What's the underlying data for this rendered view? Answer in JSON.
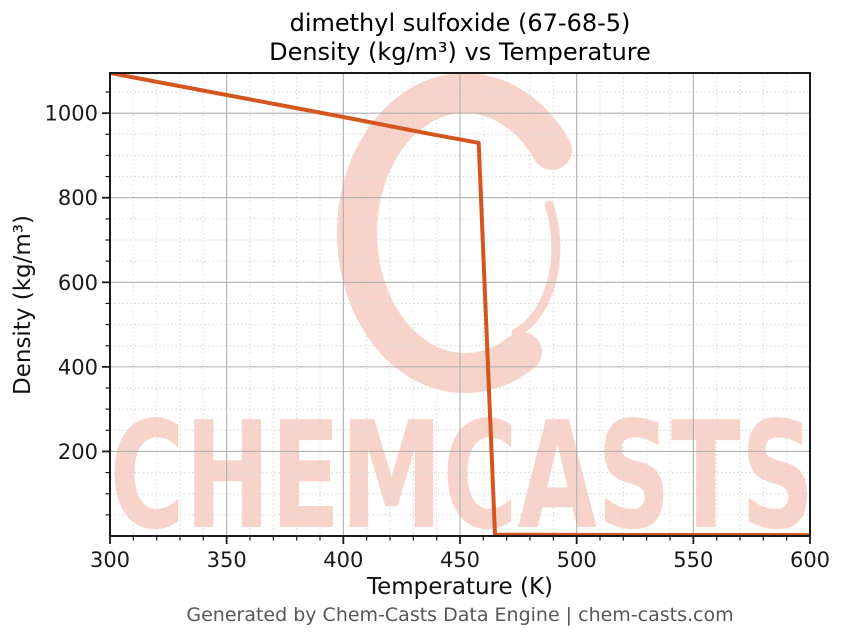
{
  "title": {
    "line1": "dimethyl sulfoxide (67-68-5)",
    "line2": "Density (kg/m³) vs Temperature"
  },
  "footer": {
    "text": "Generated by Chem-Casts Data Engine | chem-casts.com"
  },
  "watermark": {
    "text": "CHEMCASTS",
    "logo": "c-brush-stroke-logo",
    "color": "#f8d3ca"
  },
  "colors": {
    "line": "#d4561e",
    "axis": "#1a1a1a",
    "grid_major": "#b0b0b0",
    "grid_minor": "#d5d5d5",
    "tick_label": "#1a1a1a",
    "footer_text": "#575757"
  },
  "chart_data": {
    "type": "line",
    "title": "dimethyl sulfoxide (67-68-5)\nDensity (kg/m³) vs Temperature",
    "xlabel": "Temperature (K)",
    "ylabel": "Density (kg/m³)",
    "xlim": [
      300,
      600
    ],
    "ylim": [
      0,
      1095
    ],
    "x_ticks": [
      300,
      350,
      400,
      450,
      500,
      550,
      600
    ],
    "y_ticks": [
      200,
      400,
      600,
      800,
      1000
    ],
    "x_minor_step": 10,
    "y_minor_step": 50,
    "grid": {
      "major": "solid",
      "minor": "dotted"
    },
    "legend": "none",
    "line_color": "#d4561e",
    "series": [
      {
        "name": "density",
        "points": [
          [
            300,
            1095
          ],
          [
            325,
            1069
          ],
          [
            350,
            1043
          ],
          [
            375,
            1017
          ],
          [
            400,
            991
          ],
          [
            425,
            964
          ],
          [
            440,
            948
          ],
          [
            458,
            930
          ],
          [
            465,
            3
          ],
          [
            500,
            2.7
          ],
          [
            550,
            2.4
          ],
          [
            600,
            2.2
          ]
        ]
      }
    ]
  }
}
